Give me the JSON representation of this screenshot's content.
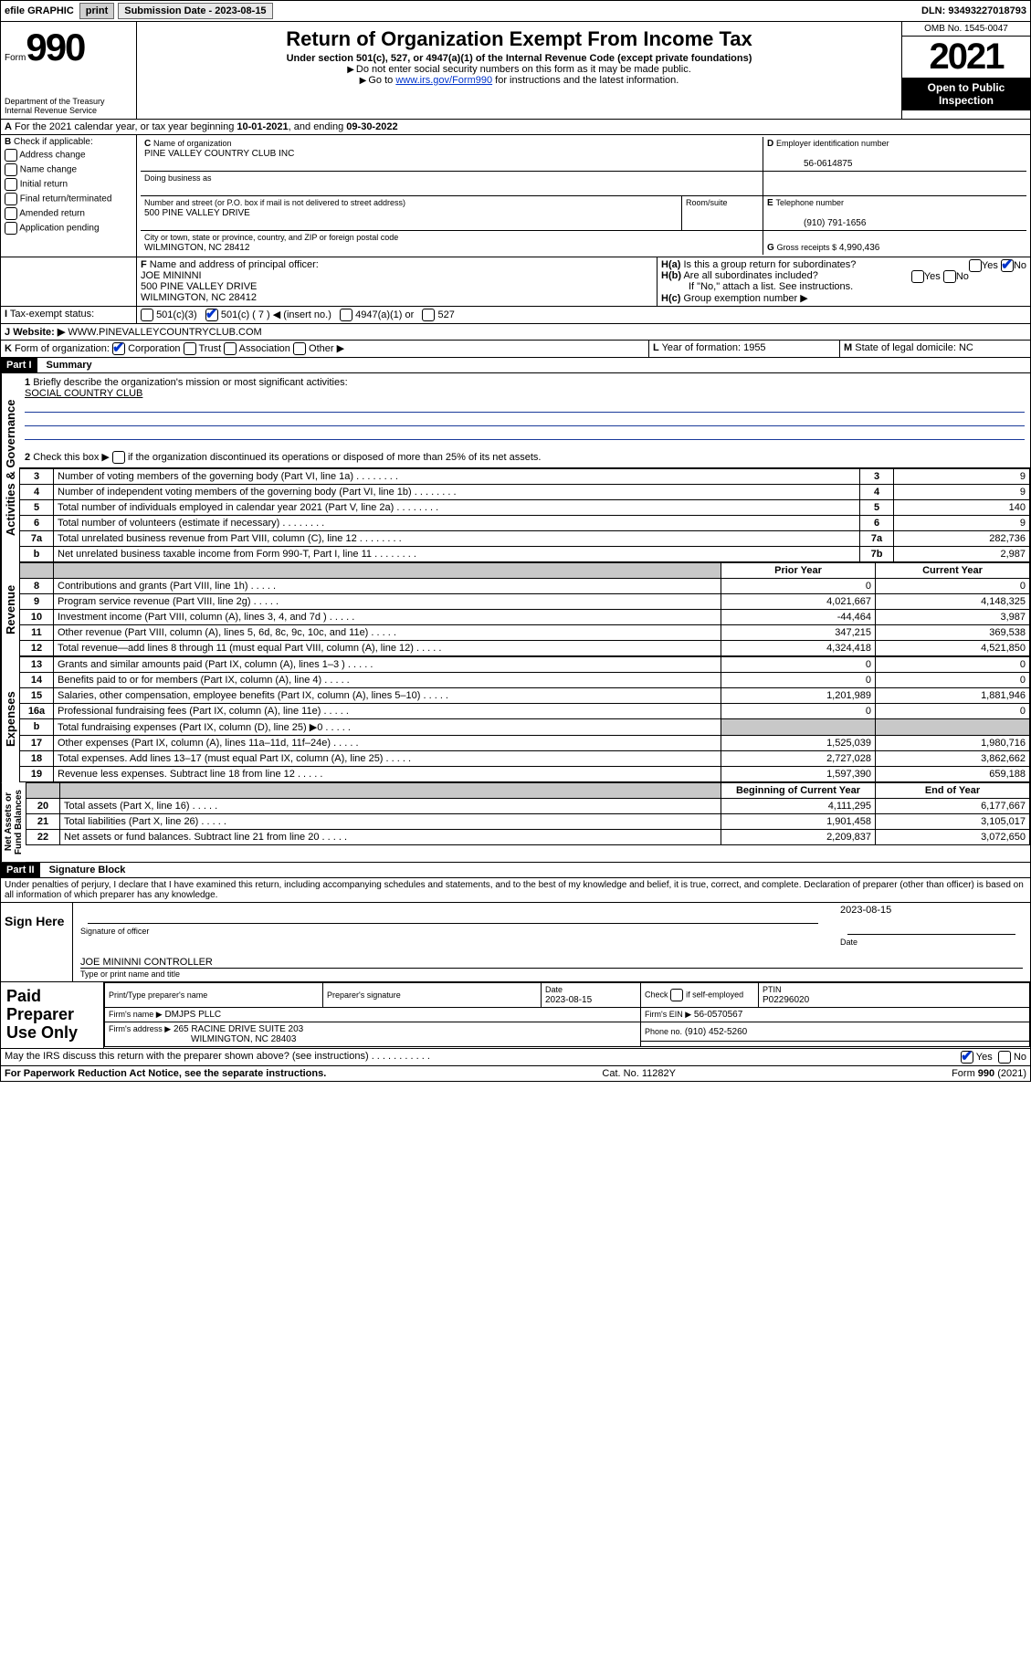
{
  "topbar": {
    "efile": "efile GRAPHIC",
    "print": "print",
    "sub_label": "Submission Date - ",
    "sub_date": "2023-08-15",
    "dln_label": "DLN: ",
    "dln": "93493227018793"
  },
  "header": {
    "form_word": "Form",
    "form_num": "990",
    "dept": "Department of the Treasury",
    "irs": "Internal Revenue Service",
    "title": "Return of Organization Exempt From Income Tax",
    "subtitle": "Under section 501(c), 527, or 4947(a)(1) of the Internal Revenue Code (except private foundations)",
    "inst1": "Do not enter social security numbers on this form as it may be made public.",
    "inst2_pre": "Go to ",
    "inst2_link": "www.irs.gov/Form990",
    "inst2_post": " for instructions and the latest information.",
    "omb": "OMB No. 1545-0047",
    "year": "2021",
    "open": "Open to Public Inspection"
  },
  "period": {
    "a_line": "For the 2021 calendar year, or tax year beginning ",
    "begin": "10-01-2021",
    "mid": ", and ending ",
    "end": "09-30-2022"
  },
  "blockB": {
    "label": "Check if applicable:",
    "items": [
      "Address change",
      "Name change",
      "Initial return",
      "Final return/terminated",
      "Amended return",
      "Application pending"
    ]
  },
  "blockC": {
    "name_label": "Name of organization",
    "name": "PINE VALLEY COUNTRY CLUB INC",
    "dba_label": "Doing business as",
    "dba": "",
    "addr_label": "Number and street (or P.O. box if mail is not delivered to street address)",
    "room_label": "Room/suite",
    "addr": "500 PINE VALLEY DRIVE",
    "city_label": "City or town, state or province, country, and ZIP or foreign postal code",
    "city": "WILMINGTON, NC  28412"
  },
  "blockD": {
    "label": "Employer identification number",
    "val": "56-0614875"
  },
  "blockE": {
    "label": "Telephone number",
    "val": "(910) 791-1656"
  },
  "blockG": {
    "label": "Gross receipts $",
    "val": "4,990,436"
  },
  "blockF": {
    "label": "Name and address of principal officer:",
    "name": "JOE MININNI",
    "addr1": "500 PINE VALLEY DRIVE",
    "addr2": "WILMINGTON, NC  28412"
  },
  "blockH": {
    "ha": "Is this a group return for subordinates?",
    "hb": "Are all subordinates included?",
    "hnote": "If \"No,\" attach a list. See instructions.",
    "hc": "Group exemption number ▶",
    "yes": "Yes",
    "no": "No"
  },
  "blockI": {
    "label": "Tax-exempt status:",
    "c3": "501(c)(3)",
    "c": "501(c) ( 7 ) ◀ (insert no.)",
    "a1": "4947(a)(1) or",
    "s527": "527"
  },
  "blockJ": {
    "label": "Website: ▶",
    "val": "WWW.PINEVALLEYCOUNTRYCLUB.COM"
  },
  "blockK": {
    "label": "Form of organization:",
    "corp": "Corporation",
    "trust": "Trust",
    "assoc": "Association",
    "other": "Other ▶"
  },
  "blockL": {
    "label": "Year of formation:",
    "val": "1955"
  },
  "blockM": {
    "label": "State of legal domicile:",
    "val": "NC"
  },
  "part1": {
    "label": "Part I",
    "title": "Summary",
    "q1": "Briefly describe the organization's mission or most significant activities:",
    "mission": "SOCIAL COUNTRY CLUB",
    "q2": "Check this box ▶",
    "q2b": "if the organization discontinued its operations or disposed of more than 25% of its net assets."
  },
  "gov_rows": [
    {
      "n": "3",
      "t": "Number of voting members of the governing body (Part VI, line 1a)",
      "box": "3",
      "v": "9"
    },
    {
      "n": "4",
      "t": "Number of independent voting members of the governing body (Part VI, line 1b)",
      "box": "4",
      "v": "9"
    },
    {
      "n": "5",
      "t": "Total number of individuals employed in calendar year 2021 (Part V, line 2a)",
      "box": "5",
      "v": "140"
    },
    {
      "n": "6",
      "t": "Total number of volunteers (estimate if necessary)",
      "box": "6",
      "v": "9"
    },
    {
      "n": "7a",
      "t": "Total unrelated business revenue from Part VIII, column (C), line 12",
      "box": "7a",
      "v": "282,736"
    },
    {
      "n": "b",
      "t": "Net unrelated business taxable income from Form 990-T, Part I, line 11",
      "box": "7b",
      "v": "2,987"
    }
  ],
  "col_headers": {
    "prior": "Prior Year",
    "current": "Current Year",
    "boy": "Beginning of Current Year",
    "eoy": "End of Year"
  },
  "rev_rows": [
    {
      "n": "8",
      "t": "Contributions and grants (Part VIII, line 1h)",
      "p": "0",
      "c": "0"
    },
    {
      "n": "9",
      "t": "Program service revenue (Part VIII, line 2g)",
      "p": "4,021,667",
      "c": "4,148,325"
    },
    {
      "n": "10",
      "t": "Investment income (Part VIII, column (A), lines 3, 4, and 7d )",
      "p": "-44,464",
      "c": "3,987"
    },
    {
      "n": "11",
      "t": "Other revenue (Part VIII, column (A), lines 5, 6d, 8c, 9c, 10c, and 11e)",
      "p": "347,215",
      "c": "369,538"
    },
    {
      "n": "12",
      "t": "Total revenue—add lines 8 through 11 (must equal Part VIII, column (A), line 12)",
      "p": "4,324,418",
      "c": "4,521,850"
    }
  ],
  "exp_rows": [
    {
      "n": "13",
      "t": "Grants and similar amounts paid (Part IX, column (A), lines 1–3 )",
      "p": "0",
      "c": "0"
    },
    {
      "n": "14",
      "t": "Benefits paid to or for members (Part IX, column (A), line 4)",
      "p": "0",
      "c": "0"
    },
    {
      "n": "15",
      "t": "Salaries, other compensation, employee benefits (Part IX, column (A), lines 5–10)",
      "p": "1,201,989",
      "c": "1,881,946"
    },
    {
      "n": "16a",
      "t": "Professional fundraising fees (Part IX, column (A), line 11e)",
      "p": "0",
      "c": "0"
    },
    {
      "n": "b",
      "t": "Total fundraising expenses (Part IX, column (D), line 25) ▶0",
      "p": "",
      "c": "",
      "shade": true
    },
    {
      "n": "17",
      "t": "Other expenses (Part IX, column (A), lines 11a–11d, 11f–24e)",
      "p": "1,525,039",
      "c": "1,980,716"
    },
    {
      "n": "18",
      "t": "Total expenses. Add lines 13–17 (must equal Part IX, column (A), line 25)",
      "p": "2,727,028",
      "c": "3,862,662"
    },
    {
      "n": "19",
      "t": "Revenue less expenses. Subtract line 18 from line 12",
      "p": "1,597,390",
      "c": "659,188"
    }
  ],
  "net_rows": [
    {
      "n": "20",
      "t": "Total assets (Part X, line 16)",
      "p": "4,111,295",
      "c": "6,177,667"
    },
    {
      "n": "21",
      "t": "Total liabilities (Part X, line 26)",
      "p": "1,901,458",
      "c": "3,105,017"
    },
    {
      "n": "22",
      "t": "Net assets or fund balances. Subtract line 21 from line 20",
      "p": "2,209,837",
      "c": "3,072,650"
    }
  ],
  "part2": {
    "label": "Part II",
    "title": "Signature Block",
    "decl": "Under penalties of perjury, I declare that I have examined this return, including accompanying schedules and statements, and to the best of my knowledge and belief, it is true, correct, and complete. Declaration of preparer (other than officer) is based on all information of which preparer has any knowledge."
  },
  "sign": {
    "here": "Sign Here",
    "sig_label": "Signature of officer",
    "date_label": "Date",
    "date": "2023-08-15",
    "name": "JOE MININNI CONTROLLER",
    "name_label": "Type or print name and title"
  },
  "paid": {
    "label": "Paid Preparer Use Only",
    "col1": "Print/Type preparer's name",
    "col2": "Preparer's signature",
    "col3": "Date",
    "date": "2023-08-15",
    "col4": "Check",
    "col4b": "if self-employed",
    "col5": "PTIN",
    "ptin": "P02296020",
    "firm_label": "Firm's name    ▶",
    "firm": "DMJPS PLLC",
    "ein_label": "Firm's EIN ▶",
    "ein": "56-0570567",
    "addr_label": "Firm's address ▶",
    "addr1": "265 RACINE DRIVE SUITE 203",
    "addr2": "WILMINGTON, NC  28403",
    "phone_label": "Phone no.",
    "phone": "(910) 452-5260"
  },
  "discuss": {
    "q": "May the IRS discuss this return with the preparer shown above? (see instructions)",
    "yes": "Yes",
    "no": "No"
  },
  "foot": {
    "left": "For Paperwork Reduction Act Notice, see the separate instructions.",
    "mid": "Cat. No. 11282Y",
    "right": "Form 990 (2021)"
  },
  "letters": {
    "A": "A",
    "B": "B",
    "C": "C",
    "D": "D",
    "E": "E",
    "F": "F",
    "G": "G",
    "H_a": "H(a)",
    "H_b": "H(b)",
    "H_c": "H(c)",
    "I": "I",
    "J": "J",
    "K": "K",
    "L": "L",
    "M": "M"
  }
}
